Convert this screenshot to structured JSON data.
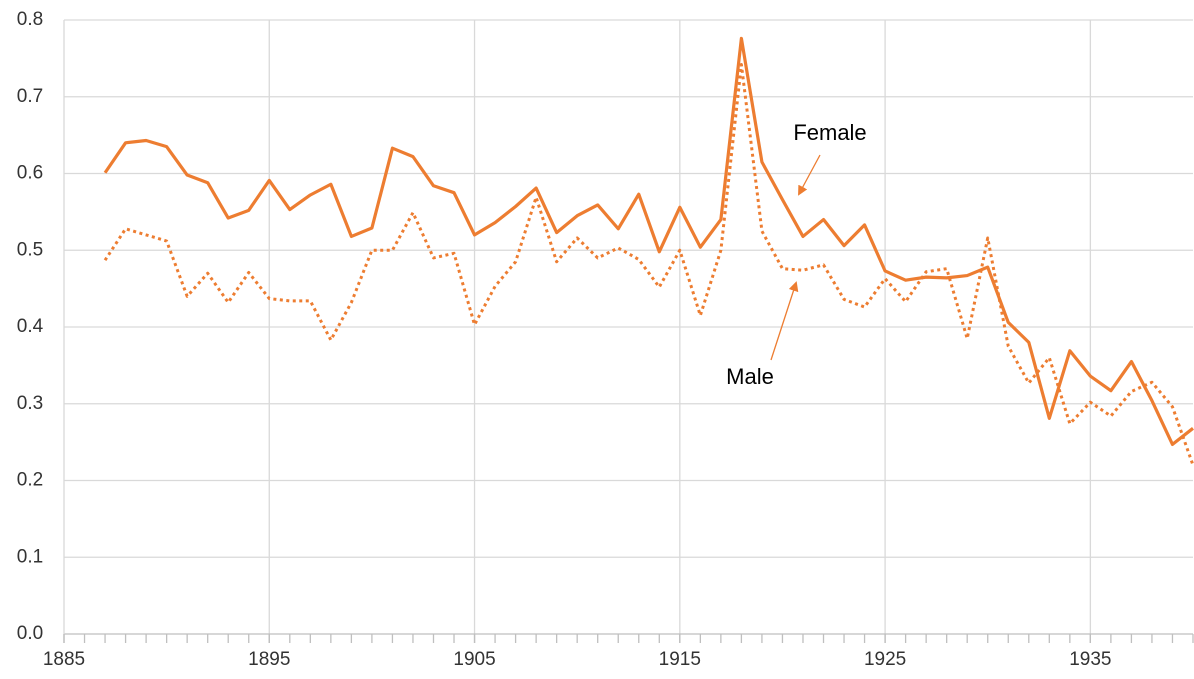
{
  "chart_data": {
    "type": "line",
    "x": [
      1887,
      1888,
      1889,
      1890,
      1891,
      1892,
      1893,
      1894,
      1895,
      1896,
      1897,
      1898,
      1899,
      1900,
      1901,
      1902,
      1903,
      1904,
      1905,
      1906,
      1907,
      1908,
      1909,
      1910,
      1911,
      1912,
      1913,
      1914,
      1915,
      1916,
      1917,
      1918,
      1919,
      1920,
      1921,
      1922,
      1923,
      1924,
      1925,
      1926,
      1927,
      1928,
      1929,
      1930,
      1931,
      1932,
      1933,
      1934,
      1935,
      1936,
      1937,
      1938,
      1939,
      1940
    ],
    "series": [
      {
        "name": "Female",
        "color": "#ed7d31",
        "style": "solid",
        "values": [
          0.601,
          0.64,
          0.643,
          0.635,
          0.598,
          0.588,
          0.542,
          0.552,
          0.591,
          0.553,
          0.572,
          0.586,
          0.518,
          0.529,
          0.633,
          0.622,
          0.584,
          0.575,
          0.52,
          0.536,
          0.557,
          0.581,
          0.523,
          0.545,
          0.559,
          0.528,
          0.573,
          0.498,
          0.556,
          0.504,
          0.54,
          0.776,
          0.615,
          0.566,
          0.518,
          0.54,
          0.506,
          0.533,
          0.473,
          0.461,
          0.465,
          0.464,
          0.467,
          0.478,
          0.406,
          0.38,
          0.281,
          0.369,
          0.336,
          0.317,
          0.355,
          0.304,
          0.247,
          0.268
        ]
      },
      {
        "name": "Male",
        "color": "#ed7d31",
        "style": "dotted",
        "values": [
          0.487,
          0.528,
          0.52,
          0.512,
          0.44,
          0.47,
          0.432,
          0.471,
          0.437,
          0.434,
          0.434,
          0.383,
          0.432,
          0.5,
          0.5,
          0.549,
          0.49,
          0.496,
          0.403,
          0.453,
          0.485,
          0.569,
          0.485,
          0.516,
          0.49,
          0.503,
          0.488,
          0.452,
          0.5,
          0.415,
          0.5,
          0.742,
          0.525,
          0.476,
          0.474,
          0.481,
          0.436,
          0.426,
          0.463,
          0.433,
          0.472,
          0.476,
          0.385,
          0.516,
          0.375,
          0.327,
          0.36,
          0.274,
          0.302,
          0.284,
          0.316,
          0.328,
          0.296,
          0.22
        ]
      }
    ],
    "annotations": [
      "Female",
      "Male"
    ],
    "xlim": [
      1885,
      1940
    ],
    "xticks": [
      1885,
      1895,
      1905,
      1915,
      1925,
      1935
    ],
    "ylim": [
      0,
      0.8
    ],
    "yticks": [
      {
        "value": 0,
        "label": "0.0"
      },
      0.1,
      0.2,
      0.3,
      0.4,
      0.5,
      0.6,
      0.7,
      0.8
    ],
    "grid": true
  }
}
